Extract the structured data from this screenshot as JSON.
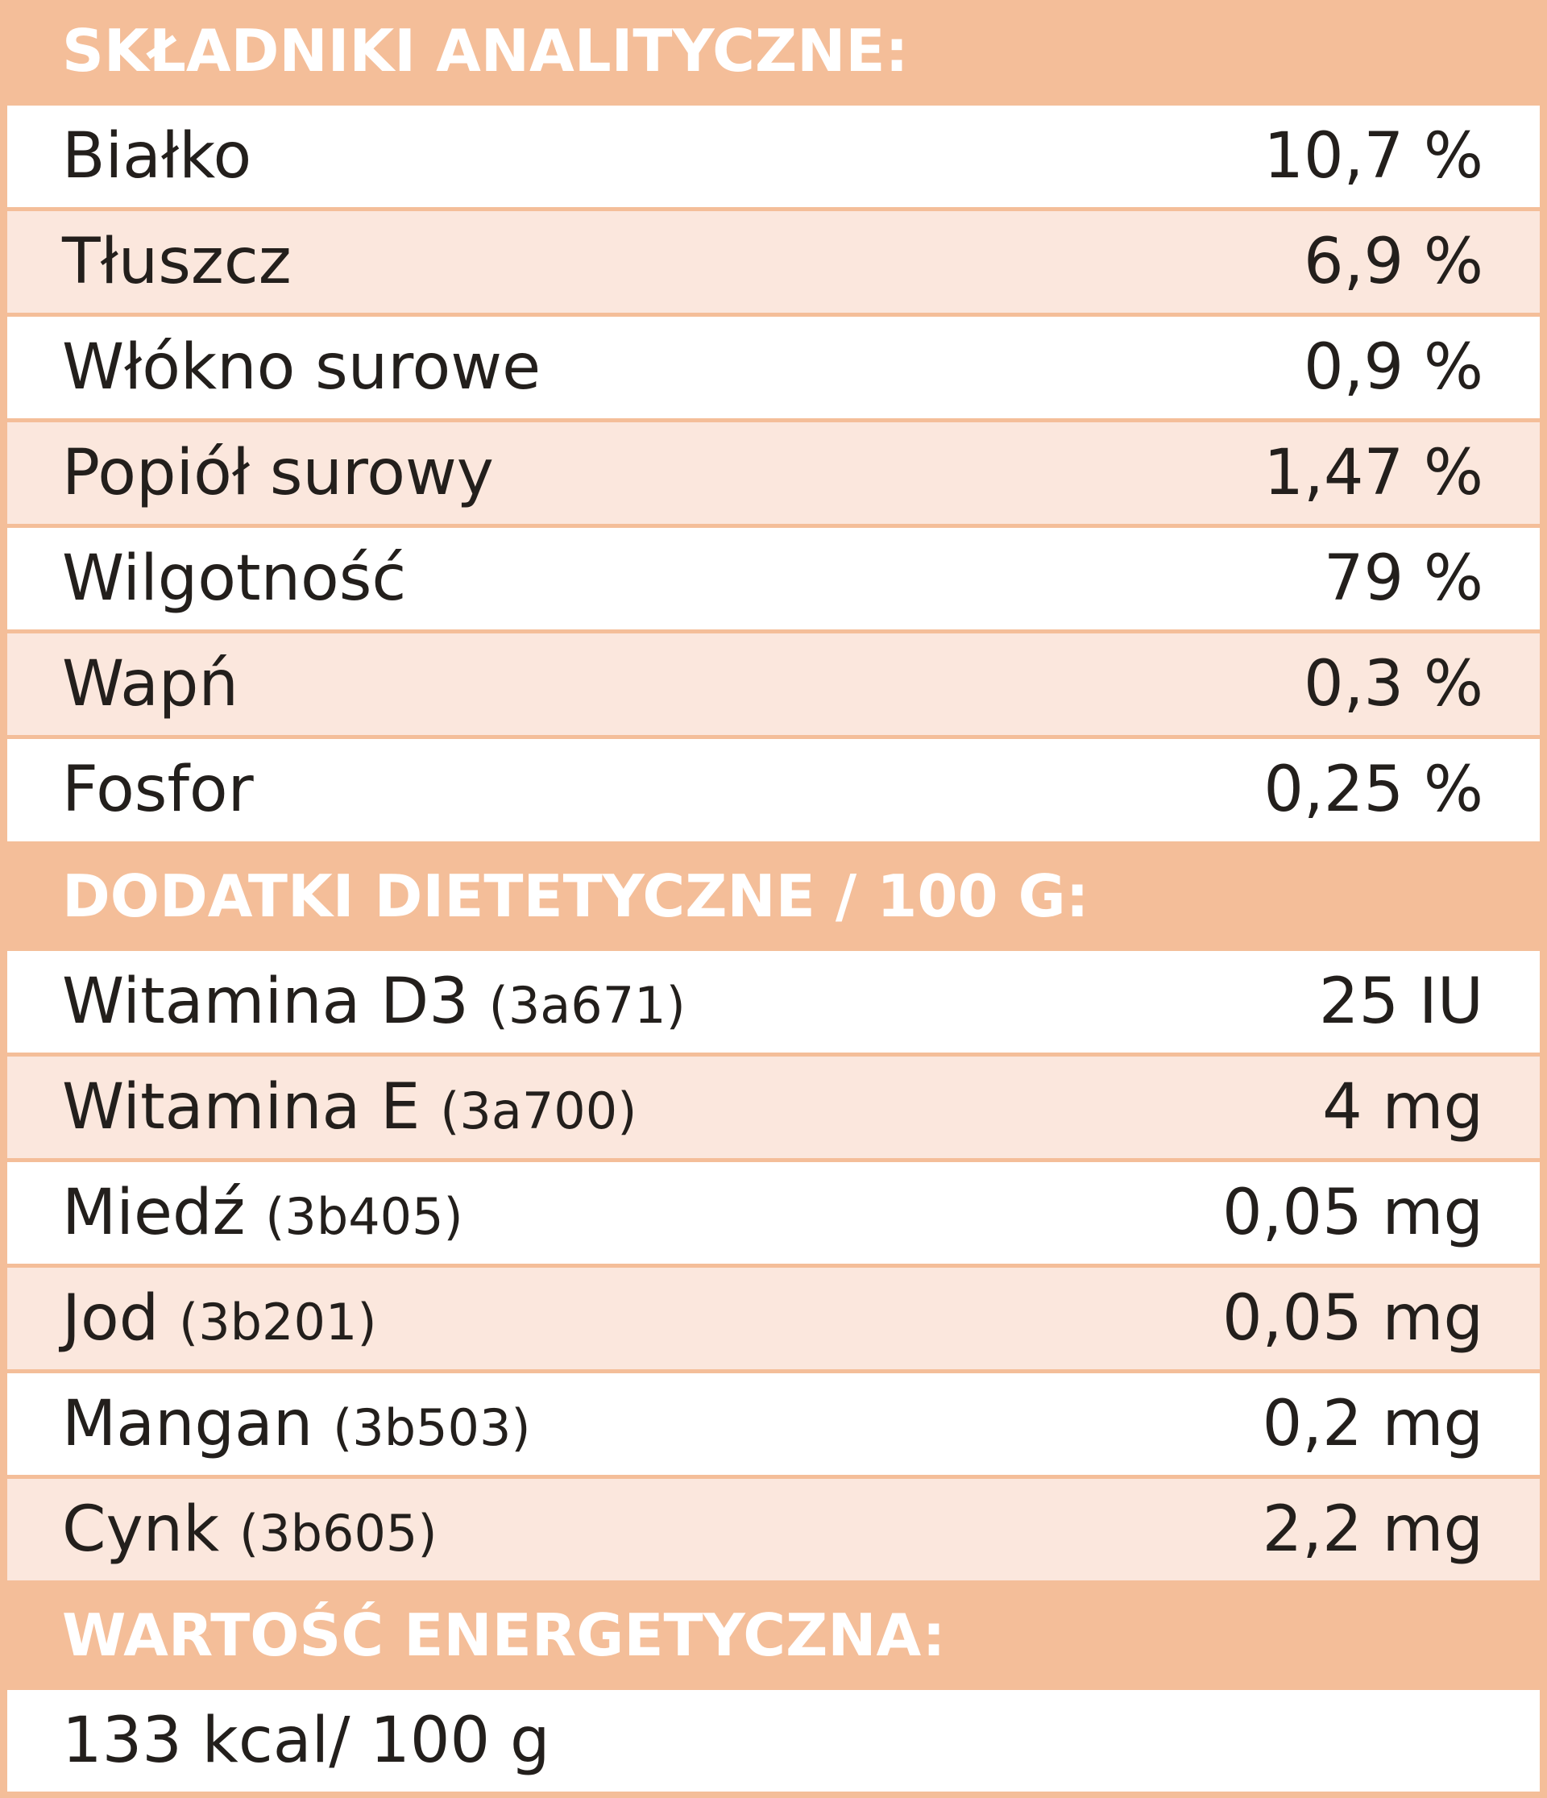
{
  "sections": [
    {
      "title": "SKŁADNIKI ANALITYCZNE:",
      "rows": [
        {
          "name": "Białko",
          "value": "10,7 %"
        },
        {
          "name": "Tłuszcz",
          "value": "6,9 %"
        },
        {
          "name": "Włókno surowe",
          "value": "0,9 %"
        },
        {
          "name": "Popiół surowy",
          "value": "1,47 %"
        },
        {
          "name": "Wilgotność",
          "value": "79 %"
        },
        {
          "name": "Wapń",
          "value": "0,3 %"
        },
        {
          "name": "Fosfor",
          "value": "0,25 %"
        }
      ]
    },
    {
      "title": "DODATKI DIETETYCZNE / 100 G:",
      "rows": [
        {
          "name": "Witamina D3",
          "code": "(3a671)",
          "value": "25 IU"
        },
        {
          "name": "Witamina E",
          "code": "(3a700)",
          "value": "4 mg"
        },
        {
          "name": "Miedź",
          "code": "(3b405)",
          "value": "0,05 mg"
        },
        {
          "name": "Jod",
          "code": "(3b201)",
          "value": "0,05 mg"
        },
        {
          "name": "Mangan",
          "code": "(3b503)",
          "value": "0,2 mg"
        },
        {
          "name": "Cynk",
          "code": "(3b605)",
          "value": "2,2 mg"
        }
      ]
    },
    {
      "title": "WARTOŚĆ ENERGETYCZNA:",
      "rows": [
        {
          "name": "133 kcal/ 100 g"
        }
      ]
    }
  ]
}
